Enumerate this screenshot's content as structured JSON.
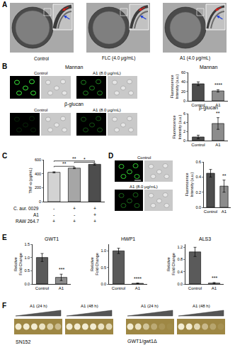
{
  "panel_labels": [
    "A",
    "B",
    "C",
    "D",
    "E",
    "F"
  ],
  "panel_a": {
    "images": [
      "Control",
      "FLC (4.0 μg/mL)",
      "A1 (4.0 μg/mL)"
    ]
  },
  "panel_b": {
    "stains": [
      "Mannan",
      "β-glucan"
    ],
    "conditions": [
      "Control",
      "A1 (8.0 μg/mL)"
    ]
  },
  "panel_c": {
    "conditions": [
      {
        "label": "C. aur. 0029",
        "signs": [
          "-",
          "+",
          "+"
        ]
      },
      {
        "label": "A1",
        "signs": [
          "-",
          "-",
          "+"
        ]
      },
      {
        "label": "RAW 264.7",
        "signs": [
          "+",
          "+",
          "+"
        ]
      }
    ]
  },
  "panel_d": {
    "conditions": [
      "Control",
      "A1 (8.0 μg/mL)"
    ]
  },
  "panel_f": {
    "treatments": [
      "A1 (24 h)",
      "A1 (48 h)"
    ],
    "strains": [
      "SN152",
      "GWT1/gwt1Δ"
    ]
  },
  "chart_data": [
    {
      "type": "bar",
      "title": "Mannan",
      "ylabel": "Fluorescence Intensity (a.u.)",
      "categories": [
        "Control",
        "A1"
      ],
      "values": [
        36,
        21
      ],
      "errors": [
        4,
        2.5
      ],
      "colors": [
        "#4d4d4d",
        "#8c8c8c"
      ],
      "ylim": [
        0,
        60
      ],
      "yticks": [
        0,
        20,
        40,
        60
      ],
      "annotations": [
        {
          "category": "A1",
          "text": "****"
        }
      ]
    },
    {
      "type": "bar",
      "title": "β-glucan",
      "ylabel": "Fluorescence Intensity (a.u.)",
      "categories": [
        "Control",
        "A1"
      ],
      "values": [
        0.8,
        3.8
      ],
      "errors": [
        0.4,
        1.3
      ],
      "colors": [
        "#4d4d4d",
        "#8c8c8c"
      ],
      "ylim": [
        0,
        6
      ],
      "yticks": [
        0,
        2,
        4,
        6
      ],
      "annotations": [
        {
          "category": "A1",
          "text": "**"
        }
      ]
    },
    {
      "type": "bar",
      "ylabel": "TNF-α (pg/mL)",
      "categories": [
        null,
        null,
        null
      ],
      "values": [
        420,
        480,
        535
      ],
      "errors": [
        8,
        8,
        12
      ],
      "colors": [
        "#d3d3d3",
        "#a6a6a6",
        "#4d4d4d"
      ],
      "ylim": [
        0,
        600
      ],
      "yticks": [
        0,
        200,
        400,
        600
      ],
      "tick_labels": "y",
      "comparisons": [
        {
          "pair": [
            0,
            1
          ],
          "text": "**"
        },
        {
          "pair": [
            1,
            2
          ],
          "text": "*"
        },
        {
          "pair": [
            0,
            2
          ],
          "text": "**"
        }
      ]
    },
    {
      "type": "bar",
      "ylabel": "Fluorescence Intensity (a.u.)",
      "categories": [
        "Control",
        "A1"
      ],
      "values": [
        0.45,
        0.28
      ],
      "errors": [
        0.05,
        0.08
      ],
      "colors": [
        "#4d4d4d",
        "#8c8c8c"
      ],
      "ylim": [
        0,
        0.6
      ],
      "yticks": [
        {
          "value": 0,
          "label": "0.0"
        },
        0.2,
        0.4,
        0.6
      ],
      "annotations": [
        {
          "category": "A1",
          "text": "**"
        }
      ]
    },
    {
      "type": "bar",
      "title": "GWT1",
      "ylabel": "Relative Fold Change",
      "categories": [
        "Control",
        "A1"
      ],
      "values": [
        1.0,
        0.25
      ],
      "errors": [
        0.15,
        0.12
      ],
      "colors": [
        "#5a5a5a",
        "#8c8c8c"
      ],
      "ylim": [
        0,
        1.5
      ],
      "yticks": [
        {
          "value": 0,
          "label": "0.0"
        },
        0.5,
        {
          "value": 1,
          "label": "1.0"
        },
        1.5
      ],
      "annotations": [
        {
          "category": "A1",
          "text": "***"
        }
      ]
    },
    {
      "type": "bar",
      "title": "HWP1",
      "ylabel": "Relative Fold Change",
      "categories": [
        "Control",
        "A1"
      ],
      "values": [
        1.0,
        0.02
      ],
      "errors": [
        0.08,
        0.01
      ],
      "colors": [
        "#5a5a5a",
        "#8c8c8c"
      ],
      "ylim": [
        0,
        1.2
      ],
      "yticks": [
        {
          "value": 0,
          "label": "0.0"
        },
        0.5,
        {
          "value": 1,
          "label": "1.0"
        }
      ],
      "annotations": [
        {
          "category": "A1",
          "text": "****"
        }
      ]
    },
    {
      "type": "bar",
      "title": "ALS3",
      "ylabel": "Relative Fold Change",
      "categories": [
        "Control",
        "A1"
      ],
      "values": [
        1.05,
        0.03
      ],
      "errors": [
        0.15,
        0.02
      ],
      "colors": [
        "#5a5a5a",
        "#8c8c8c"
      ],
      "ylim": [
        0,
        1.3
      ],
      "yticks": [
        {
          "value": 0,
          "label": "0.0"
        },
        0.4,
        0.8,
        1.2
      ],
      "annotations": [
        {
          "category": "A1",
          "text": "***"
        }
      ]
    }
  ]
}
